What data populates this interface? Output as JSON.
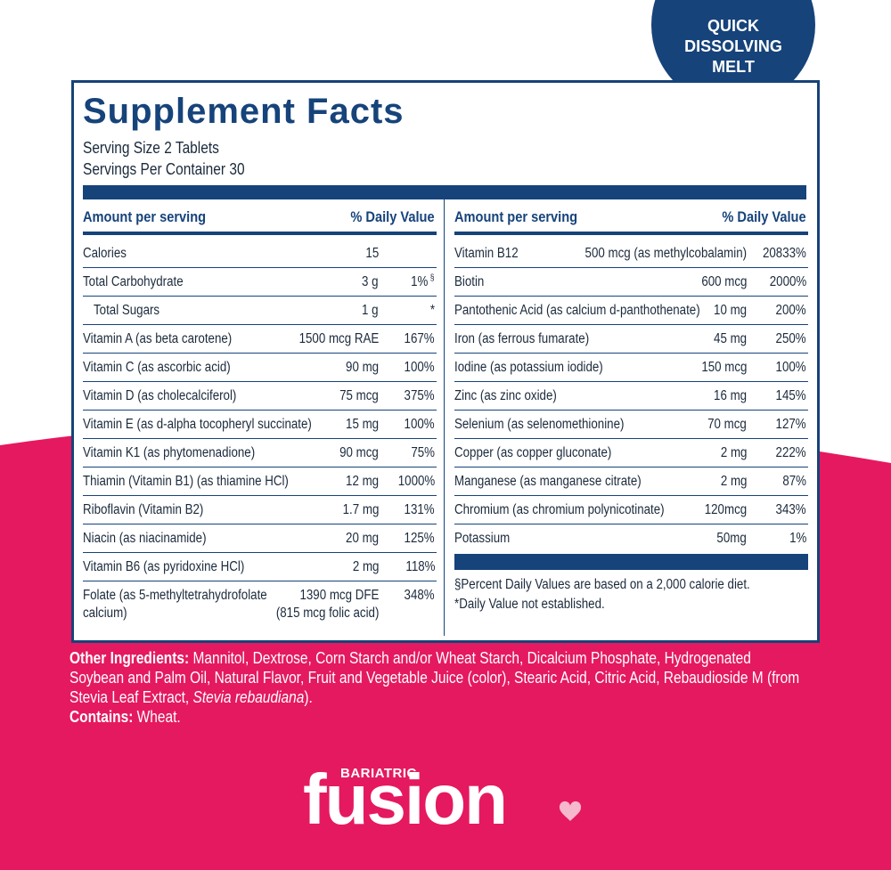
{
  "badge": {
    "lines": [
      "QUICK",
      "DISSOLVING",
      "MELT"
    ]
  },
  "panel": {
    "title": "Supplement Facts",
    "serving_size": "Serving Size 2 Tablets",
    "servings_per_container": "Servings Per Container 30",
    "left": {
      "header": {
        "amount": "Amount per serving",
        "dv": "% Daily Value"
      },
      "rows": [
        {
          "name": "Calories",
          "amount": "15"
        },
        {
          "name": "Total Carbohydrate",
          "amount": "3 g",
          "dv": "1%",
          "dv_note": "§"
        },
        {
          "name": "Total Sugars",
          "amount": "1 g",
          "dv": "*",
          "indent": true
        },
        {
          "name": "Vitamin A (as beta carotene)",
          "amount": "1500 mcg RAE",
          "dv": "167%"
        },
        {
          "name": "Vitamin C (as ascorbic acid)",
          "amount": "90 mg",
          "dv": "100%"
        },
        {
          "name": "Vitamin D (as cholecalciferol)",
          "amount": "75 mcg",
          "dv": "375%"
        },
        {
          "name": "Vitamin E (as d-alpha tocopheryl succinate)",
          "amount": "15 mg",
          "dv": "100%"
        },
        {
          "name": "Vitamin K1 (as phytomenadione)",
          "amount": "90 mcg",
          "dv": "75%"
        },
        {
          "name": "Thiamin (Vitamin B1) (as thiamine HCl)",
          "amount": "12 mg",
          "dv": "1000%"
        },
        {
          "name": "Riboflavin (Vitamin B2)",
          "amount": "1.7 mg",
          "dv": "131%"
        },
        {
          "name": "Niacin (as niacinamide)",
          "amount": "20 mg",
          "dv": "125%"
        },
        {
          "name": "Vitamin B6 (as pyridoxine HCl)",
          "amount": "2 mg",
          "dv": "118%"
        },
        {
          "name": [
            "Folate (as 5-methyltetrahydrofolate",
            "calcium)"
          ],
          "amount": [
            "1390 mcg DFE",
            "(815 mcg folic acid)"
          ],
          "dv": "348%"
        }
      ]
    },
    "right": {
      "header": {
        "amount": "Amount per serving",
        "dv": "% Daily Value"
      },
      "rows": [
        {
          "name": "Vitamin B12",
          "amount": "500 mcg (as methylcobalamin)",
          "dv": "20833%"
        },
        {
          "name": "Biotin",
          "amount": "600 mcg",
          "dv": "2000%"
        },
        {
          "name": "Pantothenic Acid (as calcium d-panthothenate)",
          "amount": "10 mg",
          "dv": "200%"
        },
        {
          "name": "Iron (as ferrous fumarate)",
          "amount": "45 mg",
          "dv": "250%"
        },
        {
          "name": "Iodine (as potassium iodide)",
          "amount": "150 mcg",
          "dv": "100%"
        },
        {
          "name": "Zinc (as zinc oxide)",
          "amount": "16 mg",
          "dv": "145%"
        },
        {
          "name": "Selenium (as selenomethionine)",
          "amount": "70 mcg",
          "dv": "127%"
        },
        {
          "name": "Copper (as copper gluconate)",
          "amount": "2 mg",
          "dv": "222%"
        },
        {
          "name": "Manganese (as manganese citrate)",
          "amount": "2 mg",
          "dv": "87%"
        },
        {
          "name": "Chromium (as chromium polynicotinate)",
          "amount": "120mcg",
          "dv": "343%"
        },
        {
          "name": "Potassium",
          "amount": "50mg",
          "dv": "1%"
        }
      ],
      "footnotes": [
        "§Percent Daily Values are based on a 2,000 calorie diet.",
        "*Daily Value not established."
      ]
    }
  },
  "ingredients": {
    "label": "Other Ingredients:",
    "text": " Mannitol, Dextrose, Corn Starch and/or Wheat Starch, Dicalcium Phosphate, Hydrogenated Soybean and Palm Oil, Natural Flavor, Fruit and Vegetable Juice (color), Stearic Acid, Citric Acid, Rebaudioside M (from Stevia Leaf Extract, ",
    "italic": "Stevia rebaudiana",
    "end": ").",
    "contains_label": "Contains:",
    "contains": " Wheat."
  },
  "logo": {
    "small": "BARIATRIC",
    "brand": "fusion"
  }
}
